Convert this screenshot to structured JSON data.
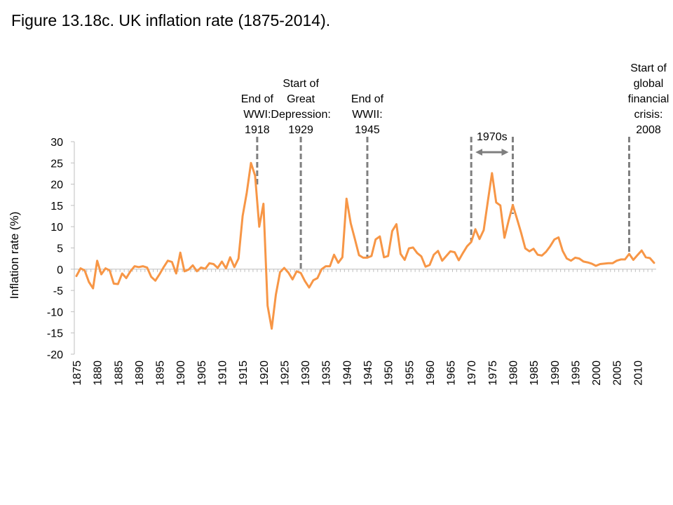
{
  "title": "Figure 13.18c. UK inflation rate (1875-2014).",
  "chart_data": {
    "type": "line",
    "title": "Figure 13.18c. UK inflation rate (1875-2014).",
    "xlabel": "",
    "ylabel": "Inflation rate (%)",
    "xlim": [
      1875,
      2014
    ],
    "ylim": [
      -20,
      30
    ],
    "y_ticks": [
      30,
      25,
      20,
      15,
      10,
      5,
      0,
      -5,
      -10,
      -15,
      -20
    ],
    "x_ticks": [
      1875,
      1880,
      1885,
      1890,
      1895,
      1900,
      1905,
      1910,
      1915,
      1920,
      1925,
      1930,
      1935,
      1940,
      1945,
      1950,
      1955,
      1960,
      1965,
      1970,
      1975,
      1980,
      1985,
      1990,
      1995,
      2000,
      2005,
      2010
    ],
    "grid": false,
    "legend": "none",
    "line_color": "#F79646",
    "annotation_color": "#7F7F7F",
    "series": [
      {
        "x": [
          1875,
          1876,
          1877,
          1878,
          1879,
          1880,
          1881,
          1882,
          1883,
          1884,
          1885,
          1886,
          1887,
          1888,
          1889,
          1890,
          1891,
          1892,
          1893,
          1894,
          1895,
          1896,
          1897,
          1898,
          1899,
          1900,
          1901,
          1902,
          1903,
          1904,
          1905,
          1906,
          1907,
          1908,
          1909,
          1910,
          1911,
          1912,
          1913,
          1914,
          1915,
          1916,
          1917,
          1918,
          1919,
          1920,
          1921,
          1922,
          1923,
          1924,
          1925,
          1926,
          1927,
          1928,
          1929,
          1930,
          1931,
          1932,
          1933,
          1934,
          1935,
          1936,
          1937,
          1938,
          1939,
          1940,
          1941,
          1942,
          1943,
          1944,
          1945,
          1946,
          1947,
          1948,
          1949,
          1950,
          1951,
          1952,
          1953,
          1954,
          1955,
          1956,
          1957,
          1958,
          1959,
          1960,
          1961,
          1962,
          1963,
          1964,
          1965,
          1966,
          1967,
          1968,
          1969,
          1970,
          1971,
          1972,
          1973,
          1974,
          1975,
          1976,
          1977,
          1978,
          1979,
          1980,
          1981,
          1982,
          1983,
          1984,
          1985,
          1986,
          1987,
          1988,
          1989,
          1990,
          1991,
          1992,
          1993,
          1994,
          1995,
          1996,
          1997,
          1998,
          1999,
          2000,
          2001,
          2002,
          2003,
          2004,
          2005,
          2006,
          2007,
          2008,
          2009,
          2010,
          2011,
          2012,
          2013,
          2014
        ],
        "y": [
          -1.6,
          0.2,
          -0.3,
          -3.0,
          -4.5,
          2.0,
          -1.2,
          0.2,
          -0.3,
          -3.4,
          -3.5,
          -1.0,
          -2.1,
          -0.5,
          0.7,
          0.5,
          0.7,
          0.4,
          -1.8,
          -2.7,
          -1.2,
          0.5,
          2.0,
          1.7,
          -1.0,
          3.9,
          -0.5,
          -0.1,
          0.9,
          -0.5,
          0.4,
          0.1,
          1.4,
          1.2,
          0.3,
          1.8,
          0.2,
          2.8,
          0.5,
          2.5,
          12.5,
          18.0,
          25.0,
          22.0,
          10.0,
          15.4,
          -8.6,
          -14.0,
          -6.0,
          -0.7,
          0.3,
          -0.8,
          -2.4,
          -0.5,
          -0.9,
          -2.8,
          -4.3,
          -2.6,
          -2.1,
          0.0,
          0.7,
          0.7,
          3.4,
          1.5,
          2.8,
          16.6,
          10.8,
          7.1,
          3.3,
          2.7,
          2.7,
          3.1,
          7.0,
          7.7,
          2.8,
          3.1,
          9.0,
          10.6,
          3.6,
          2.2,
          4.9,
          5.1,
          3.8,
          3.0,
          0.6,
          1.0,
          3.4,
          4.3,
          2.0,
          3.1,
          4.2,
          4.0,
          2.1,
          3.8,
          5.4,
          6.4,
          9.4,
          7.1,
          9.2,
          16.0,
          22.6,
          15.7,
          15.0,
          7.4,
          11.4,
          15.1,
          11.9,
          8.6,
          4.9,
          4.2,
          4.8,
          3.4,
          3.2,
          4.1,
          5.4,
          7.0,
          7.5,
          4.3,
          2.5,
          2.0,
          2.7,
          2.5,
          1.8,
          1.6,
          1.3,
          0.8,
          1.2,
          1.3,
          1.4,
          1.4,
          2.0,
          2.3,
          2.3,
          3.6,
          2.2,
          3.3,
          4.4,
          2.8,
          2.6,
          1.5
        ]
      }
    ],
    "annotations": [
      {
        "id": "wwi",
        "lines": [
          "End of",
          "WWI:",
          "1918"
        ],
        "year": 1918.5,
        "from_y": 19.5
      },
      {
        "id": "depression",
        "lines": [
          "Start of",
          "Great",
          "Depression:",
          "1929"
        ],
        "year": 1929,
        "from_y": -0.4
      },
      {
        "id": "wwii",
        "lines": [
          "End of",
          "WWII:",
          "1945"
        ],
        "year": 1945,
        "from_y": 2.7
      },
      {
        "id": "gfc",
        "lines": [
          "Start of",
          "global",
          "financial",
          "crisis:",
          "2008"
        ],
        "year": 2008,
        "from_y": 3.6
      }
    ],
    "decade_bracket": {
      "label": "1970s",
      "start": 1970,
      "end": 1980,
      "start_from_y": 6.6,
      "end_from_y": 13.0
    }
  }
}
